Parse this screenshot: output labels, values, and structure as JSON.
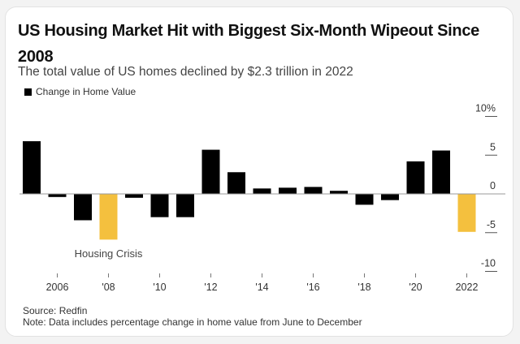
{
  "title": "US Housing Market Hit with Biggest Six-Month Wipeout Since 2008",
  "subtitle": "The total value of US homes declined by $2.3 trillion in 2022",
  "legend_label": "Change in Home Value",
  "source": "Source: Redfin",
  "note": "Note: Data includes percentage change in home value from June to December",
  "colors": {
    "default": "#000000",
    "highlight": "#f4c03e",
    "axis": "#999999"
  },
  "chart_data": {
    "type": "bar",
    "title": "US Housing Market Hit with Biggest Six-Month Wipeout Since 2008",
    "subtitle": "The total value of US homes declined by $2.3 trillion in 2022",
    "xlabel": "",
    "ylabel": "",
    "categories": [
      "2005",
      "2006",
      "2007",
      "2008",
      "2009",
      "2010",
      "2011",
      "2012",
      "2013",
      "2014",
      "2015",
      "2016",
      "2017",
      "2018",
      "2019",
      "2020",
      "2021",
      "2022"
    ],
    "series": [
      {
        "name": "Change in Home Value",
        "values": [
          6.8,
          -0.4,
          -3.4,
          -5.9,
          -0.5,
          -3.0,
          -3.0,
          5.7,
          2.8,
          0.7,
          0.8,
          0.9,
          0.4,
          -1.4,
          -0.8,
          4.2,
          5.6,
          -4.9
        ]
      }
    ],
    "highlighted": [
      "2008",
      "2022"
    ],
    "ylim": [
      -10,
      10
    ],
    "yticks": [
      10,
      5,
      0,
      -5,
      -10
    ],
    "ytick_labels": [
      "10%",
      "5",
      "0",
      "-5",
      "-10"
    ],
    "xticks": [
      "2006",
      "2008",
      "2010",
      "2012",
      "2014",
      "2016",
      "2018",
      "2020",
      "2022"
    ],
    "xtick_labels": [
      "2006",
      "'08",
      "'10",
      "'12",
      "'14",
      "'16",
      "'18",
      "'20",
      "2022"
    ],
    "y_axis_position": "right",
    "legend_position": "top-left",
    "grid": false,
    "annotations": [
      {
        "category": "2008",
        "text": "Housing Crisis"
      }
    ]
  }
}
